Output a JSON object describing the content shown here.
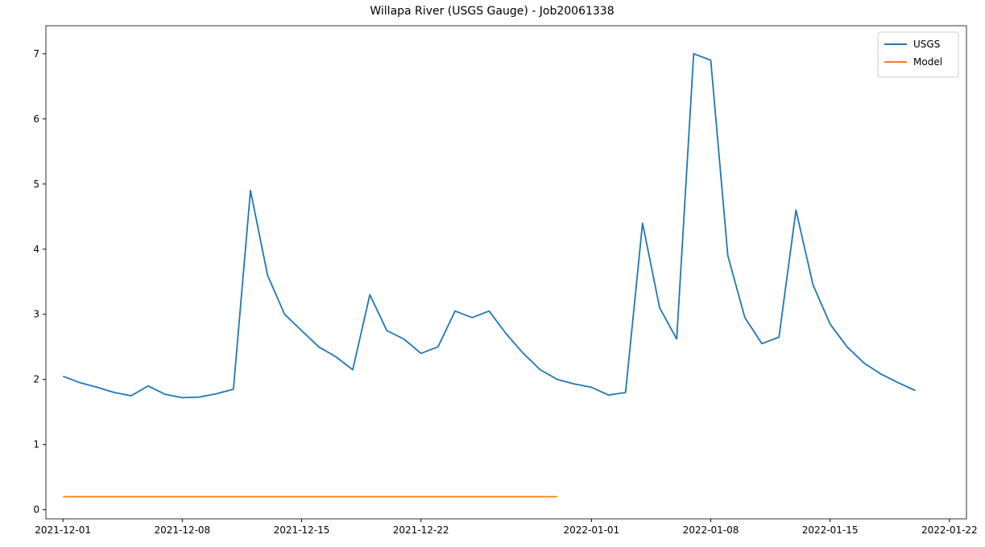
{
  "chart_data": {
    "type": "line",
    "title": "Willapa River (USGS Gauge) - Job20061338",
    "x": [
      "2021-12-01",
      "2021-12-02",
      "2021-12-03",
      "2021-12-04",
      "2021-12-05",
      "2021-12-06",
      "2021-12-07",
      "2021-12-08",
      "2021-12-09",
      "2021-12-10",
      "2021-12-11",
      "2021-12-12",
      "2021-12-13",
      "2021-12-14",
      "2021-12-15",
      "2021-12-16",
      "2021-12-17",
      "2021-12-18",
      "2021-12-19",
      "2021-12-20",
      "2021-12-21",
      "2021-12-22",
      "2021-12-23",
      "2021-12-24",
      "2021-12-25",
      "2021-12-26",
      "2021-12-27",
      "2021-12-28",
      "2021-12-29",
      "2021-12-30",
      "2021-12-31",
      "2022-01-01",
      "2022-01-02",
      "2022-01-03",
      "2022-01-04",
      "2022-01-05",
      "2022-01-06",
      "2022-01-07",
      "2022-01-08",
      "2022-01-09",
      "2022-01-10",
      "2022-01-11",
      "2022-01-12",
      "2022-01-13",
      "2022-01-14",
      "2022-01-15",
      "2022-01-16",
      "2022-01-17",
      "2022-01-18",
      "2022-01-19",
      "2022-01-20"
    ],
    "series": [
      {
        "name": "USGS",
        "color": "#1f77b4",
        "values": [
          2.05,
          1.95,
          1.88,
          1.8,
          1.75,
          1.9,
          1.77,
          1.72,
          1.73,
          1.78,
          1.85,
          4.9,
          3.6,
          3.0,
          2.75,
          2.5,
          2.35,
          2.15,
          3.3,
          2.75,
          2.62,
          2.4,
          2.5,
          3.05,
          2.95,
          3.05,
          2.7,
          2.4,
          2.15,
          2.0,
          1.93,
          1.88,
          1.76,
          1.8,
          4.4,
          3.1,
          2.62,
          7.0,
          6.9,
          3.9,
          2.95,
          2.55,
          2.65,
          4.6,
          3.45,
          2.85,
          2.5,
          2.25,
          2.08,
          1.95,
          1.83
        ]
      },
      {
        "name": "Model",
        "color": "#ff7f0e",
        "values": [
          0.2,
          0.2,
          0.2,
          0.2,
          0.2,
          0.2,
          0.2,
          0.2,
          0.2,
          0.2,
          0.2,
          0.2,
          0.2,
          0.2,
          0.2,
          0.2,
          0.2,
          0.2,
          0.2,
          0.2,
          0.2,
          0.2,
          0.2,
          0.2,
          0.2,
          0.2,
          0.2,
          0.2,
          0.2,
          0.2,
          null,
          null,
          null,
          null,
          null,
          null,
          null,
          null,
          null,
          null,
          null,
          null,
          null,
          null,
          null,
          null,
          null,
          null,
          null,
          null,
          null
        ]
      }
    ],
    "xlim": [
      "2021-11-30",
      "2022-01-23"
    ],
    "xticks": [
      "2021-12-01",
      "2021-12-08",
      "2021-12-15",
      "2021-12-22",
      "2022-01-01",
      "2022-01-08",
      "2022-01-15",
      "2022-01-22"
    ],
    "ylim": [
      -0.14,
      7.43
    ],
    "yticks": [
      0,
      1,
      2,
      3,
      4,
      5,
      6,
      7
    ],
    "legend": "upper right"
  }
}
